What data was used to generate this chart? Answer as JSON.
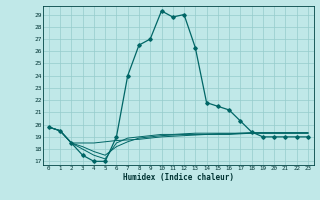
{
  "xlabel": "Humidex (Indice chaleur)",
  "bg_color": "#c0e8e8",
  "grid_color": "#96cccc",
  "line_color": "#006666",
  "x_ticks": [
    0,
    1,
    2,
    3,
    4,
    5,
    6,
    7,
    8,
    9,
    10,
    11,
    12,
    13,
    14,
    15,
    16,
    17,
    18,
    19,
    20,
    21,
    22,
    23
  ],
  "y_ticks": [
    17,
    18,
    19,
    20,
    21,
    22,
    23,
    24,
    25,
    26,
    27,
    28,
    29
  ],
  "ylim": [
    16.7,
    29.7
  ],
  "xlim": [
    -0.5,
    23.5
  ],
  "main_line": [
    19.8,
    19.5,
    18.5,
    17.5,
    17.0,
    17.0,
    19.0,
    24.0,
    26.5,
    27.0,
    29.3,
    28.8,
    29.0,
    26.3,
    21.8,
    21.5,
    21.2,
    20.3,
    19.4,
    19.0,
    19.0,
    19.0,
    19.0,
    19.0
  ],
  "flat_line1": [
    19.8,
    19.5,
    18.5,
    18.5,
    18.5,
    18.6,
    18.7,
    18.75,
    18.8,
    18.9,
    19.0,
    19.05,
    19.1,
    19.15,
    19.2,
    19.2,
    19.2,
    19.25,
    19.3,
    19.3,
    19.3,
    19.3,
    19.3,
    19.3
  ],
  "flat_line2": [
    19.8,
    19.5,
    18.5,
    18.2,
    17.8,
    17.5,
    18.2,
    18.6,
    18.9,
    19.0,
    19.1,
    19.15,
    19.2,
    19.2,
    19.2,
    19.25,
    19.25,
    19.3,
    19.3,
    19.3,
    19.3,
    19.3,
    19.3,
    19.3
  ],
  "flat_line3": [
    19.8,
    19.5,
    18.5,
    18.0,
    17.5,
    17.2,
    18.5,
    18.9,
    19.0,
    19.1,
    19.2,
    19.2,
    19.25,
    19.3,
    19.3,
    19.3,
    19.3,
    19.3,
    19.35,
    19.35,
    19.35,
    19.35,
    19.35,
    19.35
  ]
}
